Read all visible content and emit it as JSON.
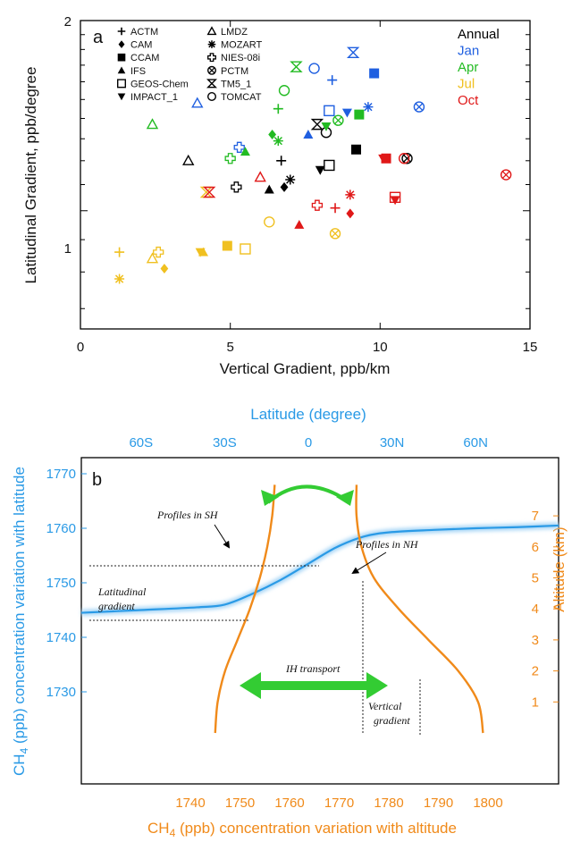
{
  "colors": {
    "annual": "#000000",
    "jan": "#1f5fe0",
    "apr": "#22bb22",
    "jul": "#f0c020",
    "oct": "#e01818",
    "blue_axis": "#2a9ae6",
    "orange_axis": "#f08a1a",
    "green_arrow": "#33cc33"
  },
  "chart_data": [
    {
      "type": "scatter",
      "panel_label": "a",
      "xlabel": "Vertical Gradient, ppb/km",
      "ylabel": "Latitudinal Gradient, ppb/degree",
      "xlim": [
        0,
        15
      ],
      "ylim": [
        0.65,
        2.0
      ],
      "yscale": "log",
      "x_ticks": [
        "0",
        "5",
        "10",
        "15"
      ],
      "y_ticks": [
        "1",
        "2"
      ],
      "models": [
        {
          "name": "ACTM",
          "marker": "plus"
        },
        {
          "name": "CAM",
          "marker": "diamond-filled"
        },
        {
          "name": "CCAM",
          "marker": "square-filled"
        },
        {
          "name": "IFS",
          "marker": "triangle-up-filled"
        },
        {
          "name": "GEOS-Chem",
          "marker": "square-open"
        },
        {
          "name": "IMPACT_1",
          "marker": "triangle-down-filled"
        },
        {
          "name": "LMDZ",
          "marker": "triangle-up-open"
        },
        {
          "name": "MOZART",
          "marker": "asterisk"
        },
        {
          "name": "NIES-08i",
          "marker": "cross-open"
        },
        {
          "name": "PCTM",
          "marker": "circle-cross"
        },
        {
          "name": "TM5_1",
          "marker": "hourglass"
        },
        {
          "name": "TOMCAT",
          "marker": "circle-open"
        }
      ],
      "seasons": [
        {
          "name": "Annual",
          "color": "#000000"
        },
        {
          "name": "Jan",
          "color": "#1f5fe0"
        },
        {
          "name": "Apr",
          "color": "#22bb22"
        },
        {
          "name": "Jul",
          "color": "#f0c020"
        },
        {
          "name": "Oct",
          "color": "#e01818"
        }
      ],
      "points": [
        {
          "model": "ACTM",
          "season": "Annual",
          "x": 6.7,
          "y": 1.2
        },
        {
          "model": "CAM",
          "season": "Annual",
          "x": 6.8,
          "y": 1.09
        },
        {
          "model": "CCAM",
          "season": "Annual",
          "x": 9.2,
          "y": 1.25
        },
        {
          "model": "IFS",
          "season": "Annual",
          "x": 6.3,
          "y": 1.08
        },
        {
          "model": "GEOS-Chem",
          "season": "Annual",
          "x": 8.3,
          "y": 1.18
        },
        {
          "model": "IMPACT_1",
          "season": "Annual",
          "x": 8.0,
          "y": 1.16
        },
        {
          "model": "LMDZ",
          "season": "Annual",
          "x": 3.6,
          "y": 1.2
        },
        {
          "model": "MOZART",
          "season": "Annual",
          "x": 7.0,
          "y": 1.12
        },
        {
          "model": "NIES-08i",
          "season": "Annual",
          "x": 5.2,
          "y": 1.09
        },
        {
          "model": "PCTM",
          "season": "Annual",
          "x": 10.9,
          "y": 1.21
        },
        {
          "model": "TM5_1",
          "season": "Annual",
          "x": 7.9,
          "y": 1.37
        },
        {
          "model": "TOMCAT",
          "season": "Annual",
          "x": 8.2,
          "y": 1.33
        },
        {
          "model": "ACTM",
          "season": "Jan",
          "x": 8.4,
          "y": 1.61
        },
        {
          "model": "CCAM",
          "season": "Jan",
          "x": 9.8,
          "y": 1.65
        },
        {
          "model": "IFS",
          "season": "Jan",
          "x": 7.6,
          "y": 1.32
        },
        {
          "model": "GEOS-Chem",
          "season": "Jan",
          "x": 8.3,
          "y": 1.44
        },
        {
          "model": "IMPACT_1",
          "season": "Jan",
          "x": 8.9,
          "y": 1.43
        },
        {
          "model": "LMDZ",
          "season": "Jan",
          "x": 3.9,
          "y": 1.48
        },
        {
          "model": "MOZART",
          "season": "Jan",
          "x": 9.6,
          "y": 1.46
        },
        {
          "model": "NIES-08i",
          "season": "Jan",
          "x": 5.3,
          "y": 1.26
        },
        {
          "model": "PCTM",
          "season": "Jan",
          "x": 11.3,
          "y": 1.46
        },
        {
          "model": "TM5_1",
          "season": "Jan",
          "x": 9.1,
          "y": 1.78
        },
        {
          "model": "TOMCAT",
          "season": "Jan",
          "x": 7.8,
          "y": 1.68
        },
        {
          "model": "ACTM",
          "season": "Apr",
          "x": 6.6,
          "y": 1.45
        },
        {
          "model": "CAM",
          "season": "Apr",
          "x": 6.4,
          "y": 1.32
        },
        {
          "model": "CCAM",
          "season": "Apr",
          "x": 9.3,
          "y": 1.42
        },
        {
          "model": "IFS",
          "season": "Apr",
          "x": 5.5,
          "y": 1.24
        },
        {
          "model": "IMPACT_1",
          "season": "Apr",
          "x": 8.2,
          "y": 1.36
        },
        {
          "model": "LMDZ",
          "season": "Apr",
          "x": 2.4,
          "y": 1.37
        },
        {
          "model": "MOZART",
          "season": "Apr",
          "x": 6.6,
          "y": 1.29
        },
        {
          "model": "NIES-08i",
          "season": "Apr",
          "x": 5.0,
          "y": 1.21
        },
        {
          "model": "PCTM",
          "season": "Apr",
          "x": 8.6,
          "y": 1.39
        },
        {
          "model": "TM5_1",
          "season": "Apr",
          "x": 7.2,
          "y": 1.69
        },
        {
          "model": "TOMCAT",
          "season": "Apr",
          "x": 6.8,
          "y": 1.55
        },
        {
          "model": "ACTM",
          "season": "Jul",
          "x": 1.3,
          "y": 0.86
        },
        {
          "model": "CAM",
          "season": "Jul",
          "x": 2.8,
          "y": 0.81
        },
        {
          "model": "CCAM",
          "season": "Jul",
          "x": 4.9,
          "y": 0.88
        },
        {
          "model": "IFS",
          "season": "Jul",
          "x": 4.1,
          "y": 0.86
        },
        {
          "model": "GEOS-Chem",
          "season": "Jul",
          "x": 5.5,
          "y": 0.87
        },
        {
          "model": "IMPACT_1",
          "season": "Jul",
          "x": 4.0,
          "y": 0.86
        },
        {
          "model": "LMDZ",
          "season": "Jul",
          "x": 2.4,
          "y": 0.84
        },
        {
          "model": "MOZART",
          "season": "Jul",
          "x": 1.3,
          "y": 0.78
        },
        {
          "model": "NIES-08i",
          "season": "Jul",
          "x": 2.6,
          "y": 0.86
        },
        {
          "model": "PCTM",
          "season": "Jul",
          "x": 8.5,
          "y": 0.92
        },
        {
          "model": "TM5_1",
          "season": "Jul",
          "x": 4.2,
          "y": 1.07
        },
        {
          "model": "TOMCAT",
          "season": "Jul",
          "x": 6.3,
          "y": 0.96
        },
        {
          "model": "ACTM",
          "season": "Oct",
          "x": 8.5,
          "y": 1.01
        },
        {
          "model": "CAM",
          "season": "Oct",
          "x": 9.0,
          "y": 0.99
        },
        {
          "model": "CCAM",
          "season": "Oct",
          "x": 10.2,
          "y": 1.21
        },
        {
          "model": "IFS",
          "season": "Oct",
          "x": 7.3,
          "y": 0.95
        },
        {
          "model": "GEOS-Chem",
          "season": "Oct",
          "x": 10.5,
          "y": 1.05
        },
        {
          "model": "IMPACT_1",
          "season": "Oct",
          "x": 10.1,
          "y": 1.21
        },
        {
          "model": "LMDZ",
          "season": "Oct",
          "x": 6.0,
          "y": 1.13
        },
        {
          "model": "MOZART",
          "season": "Oct",
          "x": 9.0,
          "y": 1.06
        },
        {
          "model": "NIES-08i",
          "season": "Oct",
          "x": 7.9,
          "y": 1.02
        },
        {
          "model": "PCTM",
          "season": "Oct",
          "x": 14.2,
          "y": 1.14
        },
        {
          "model": "TM5_1",
          "season": "Oct",
          "x": 4.3,
          "y": 1.07
        },
        {
          "model": "TOMCAT",
          "season": "Oct",
          "x": 10.8,
          "y": 1.21
        },
        {
          "model": "IMPACT_1",
          "season": "Oct",
          "x": 10.5,
          "y": 1.04
        }
      ]
    },
    {
      "type": "line",
      "panel_label": "b",
      "top_axis_label": "Latitude (degree)",
      "top_ticks": [
        "60S",
        "30S",
        "0",
        "30N",
        "60N"
      ],
      "left_axis_label": "CH4 (ppb) concentration variation with latitude",
      "left_ticks": [
        "1770",
        "1760",
        "1750",
        "1740",
        "1730"
      ],
      "right_axis_label": "Altitude (km)",
      "right_ticks": [
        "7",
        "6",
        "5",
        "4",
        "3",
        "2",
        "1"
      ],
      "bottom_axis_label": "CH4 (ppb) concentration variation with altitude",
      "bottom_ticks": [
        "1740",
        "1750",
        "1760",
        "1770",
        "1780",
        "1790",
        "1800"
      ],
      "annotations": {
        "profiles_sh": "Profiles in SH",
        "profiles_nh": "Profiles in NH",
        "latitudinal_gradient": "Latitudinal gradient",
        "ih_transport": "IH transport",
        "vertical_gradient": "Vertical gradient"
      },
      "series": [
        {
          "name": "Latitudinal profile",
          "x_axis": "latitude",
          "x": [
            -90,
            -60,
            -40,
            -30,
            -20,
            -10,
            0,
            10,
            20,
            30,
            45,
            60,
            75,
            90
          ],
          "y": [
            1744.5,
            1745,
            1745.5,
            1746,
            1748,
            1750.5,
            1753.5,
            1756.5,
            1758.5,
            1759.3,
            1759.7,
            1760,
            1760.2,
            1760.5
          ]
        },
        {
          "name": "Profiles in SH",
          "x_axis": "ch4_altitude",
          "x": [
            1745,
            1745.5,
            1747,
            1749.5,
            1752,
            1754,
            1755.5,
            1756.5,
            1757
          ],
          "y": [
            0,
            1,
            2,
            3,
            4,
            5,
            6,
            7,
            8
          ]
        },
        {
          "name": "Profiles in NH",
          "x_axis": "ch4_altitude",
          "x": [
            1799,
            1798,
            1794,
            1788,
            1782,
            1777,
            1774.5,
            1773.5,
            1773.5
          ],
          "y": [
            0,
            1,
            2,
            3,
            4,
            5,
            6,
            7,
            8
          ]
        }
      ]
    }
  ]
}
